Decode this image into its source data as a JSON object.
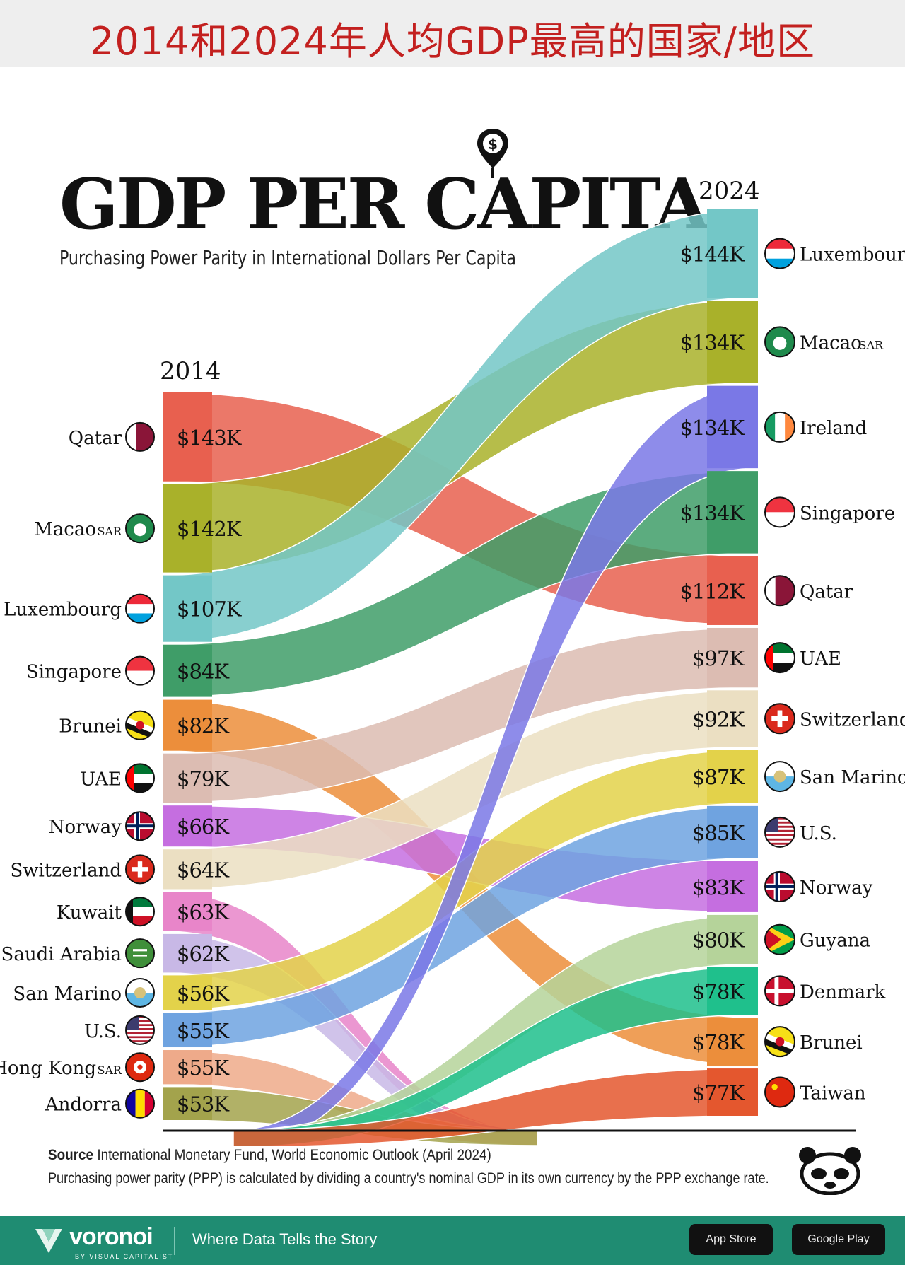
{
  "banner_title": "2014和2024年人均GDP最高的国家/地区",
  "header": {
    "title": "GDP PER CAPITA",
    "subtitle": "Purchasing Power Parity in International Dollars Per Capita"
  },
  "footer": {
    "source_label": "Source",
    "source_text": "International Monetary Fund, World Economic Outlook (April 2024)",
    "note": "Purchasing power parity (PPP) is calculated by dividing a country's nominal GDP in its own currency by the PPP exchange rate.",
    "brand": "voronoi",
    "brand_sub": "BY VISUAL CAPITALIST",
    "tagline": "Where Data Tells the Story",
    "app_store": "App Store",
    "google_play": "Google Play"
  },
  "chart_data": {
    "type": "bump",
    "title": "GDP PER CAPITA",
    "subtitle": "Purchasing Power Parity in International Dollars Per Capita",
    "unit": "thousand international dollars (PPP)",
    "years": [
      "2014",
      "2024"
    ],
    "left": [
      {
        "country": "Qatar",
        "suffix": "",
        "label": "$143K",
        "value": 143,
        "color": "#e8604f",
        "flag": "qatar"
      },
      {
        "country": "Macao",
        "suffix": "SAR",
        "label": "$142K",
        "value": 142,
        "color": "#a9b12a",
        "flag": "macao"
      },
      {
        "country": "Luxembourg",
        "suffix": "",
        "label": "$107K",
        "value": 107,
        "color": "#73c7c7",
        "flag": "luxembourg"
      },
      {
        "country": "Singapore",
        "suffix": "",
        "label": "$84K",
        "value": 84,
        "color": "#3f9d68",
        "flag": "singapore"
      },
      {
        "country": "Brunei",
        "suffix": "",
        "label": "$82K",
        "value": 82,
        "color": "#ec8e3b",
        "flag": "brunei"
      },
      {
        "country": "UAE",
        "suffix": "",
        "label": "$79K",
        "value": 79,
        "color": "#dcbcb2",
        "flag": "uae"
      },
      {
        "country": "Norway",
        "suffix": "",
        "label": "$66K",
        "value": 66,
        "color": "#c56ee0",
        "flag": "norway"
      },
      {
        "country": "Switzerland",
        "suffix": "",
        "label": "$64K",
        "value": 64,
        "color": "#ebdfc2",
        "flag": "switzerland"
      },
      {
        "country": "Kuwait",
        "suffix": "",
        "label": "$63K",
        "value": 63,
        "color": "#e885c9",
        "flag": "kuwait"
      },
      {
        "country": "Saudi Arabia",
        "suffix": "",
        "label": "$62K",
        "value": 62,
        "color": "#c8b8e6",
        "flag": "saudi"
      },
      {
        "country": "San Marino",
        "suffix": "",
        "label": "$56K",
        "value": 56,
        "color": "#e3d24a",
        "flag": "sanmarino"
      },
      {
        "country": "U.S.",
        "suffix": "",
        "label": "$55K",
        "value": 55,
        "color": "#6fa3e0",
        "flag": "us"
      },
      {
        "country": "Hong Kong",
        "suffix": "SAR",
        "label": "$55K",
        "value": 55,
        "color": "#eeaa8a",
        "flag": "hongkong"
      },
      {
        "country": "Andorra",
        "suffix": "",
        "label": "$53K",
        "value": 53,
        "color": "#a3a34c",
        "flag": "andorra"
      }
    ],
    "right": [
      {
        "country": "Luxembourg",
        "suffix": "",
        "label": "$144K",
        "value": 144,
        "color": "#73c7c7",
        "flag": "luxembourg"
      },
      {
        "country": "Macao",
        "suffix": "SAR",
        "label": "$134K",
        "value": 134,
        "color": "#a9b12a",
        "flag": "macao"
      },
      {
        "country": "Ireland",
        "suffix": "",
        "label": "$134K",
        "value": 134,
        "color": "#7a78e6",
        "flag": "ireland"
      },
      {
        "country": "Singapore",
        "suffix": "",
        "label": "$134K",
        "value": 134,
        "color": "#3f9d68",
        "flag": "singapore"
      },
      {
        "country": "Qatar",
        "suffix": "",
        "label": "$112K",
        "value": 112,
        "color": "#e8604f",
        "flag": "qatar"
      },
      {
        "country": "UAE",
        "suffix": "",
        "label": "$97K",
        "value": 97,
        "color": "#dcbcb2",
        "flag": "uae"
      },
      {
        "country": "Switzerland",
        "suffix": "",
        "label": "$92K",
        "value": 92,
        "color": "#ebdfc2",
        "flag": "switzerland"
      },
      {
        "country": "San Marino",
        "suffix": "",
        "label": "$87K",
        "value": 87,
        "color": "#e3d24a",
        "flag": "sanmarino"
      },
      {
        "country": "U.S.",
        "suffix": "",
        "label": "$85K",
        "value": 85,
        "color": "#6fa3e0",
        "flag": "us"
      },
      {
        "country": "Norway",
        "suffix": "",
        "label": "$83K",
        "value": 83,
        "color": "#c56ee0",
        "flag": "norway"
      },
      {
        "country": "Guyana",
        "suffix": "",
        "label": "$80K",
        "value": 80,
        "color": "#b5d39a",
        "flag": "guyana"
      },
      {
        "country": "Denmark",
        "suffix": "",
        "label": "$78K",
        "value": 78,
        "color": "#1fc08c",
        "flag": "denmark"
      },
      {
        "country": "Brunei",
        "suffix": "",
        "label": "$78K",
        "value": 78,
        "color": "#ec8e3b",
        "flag": "brunei"
      },
      {
        "country": "Taiwan",
        "suffix": "",
        "label": "$77K",
        "value": 77,
        "color": "#e4572e",
        "flag": "taiwan"
      }
    ]
  }
}
